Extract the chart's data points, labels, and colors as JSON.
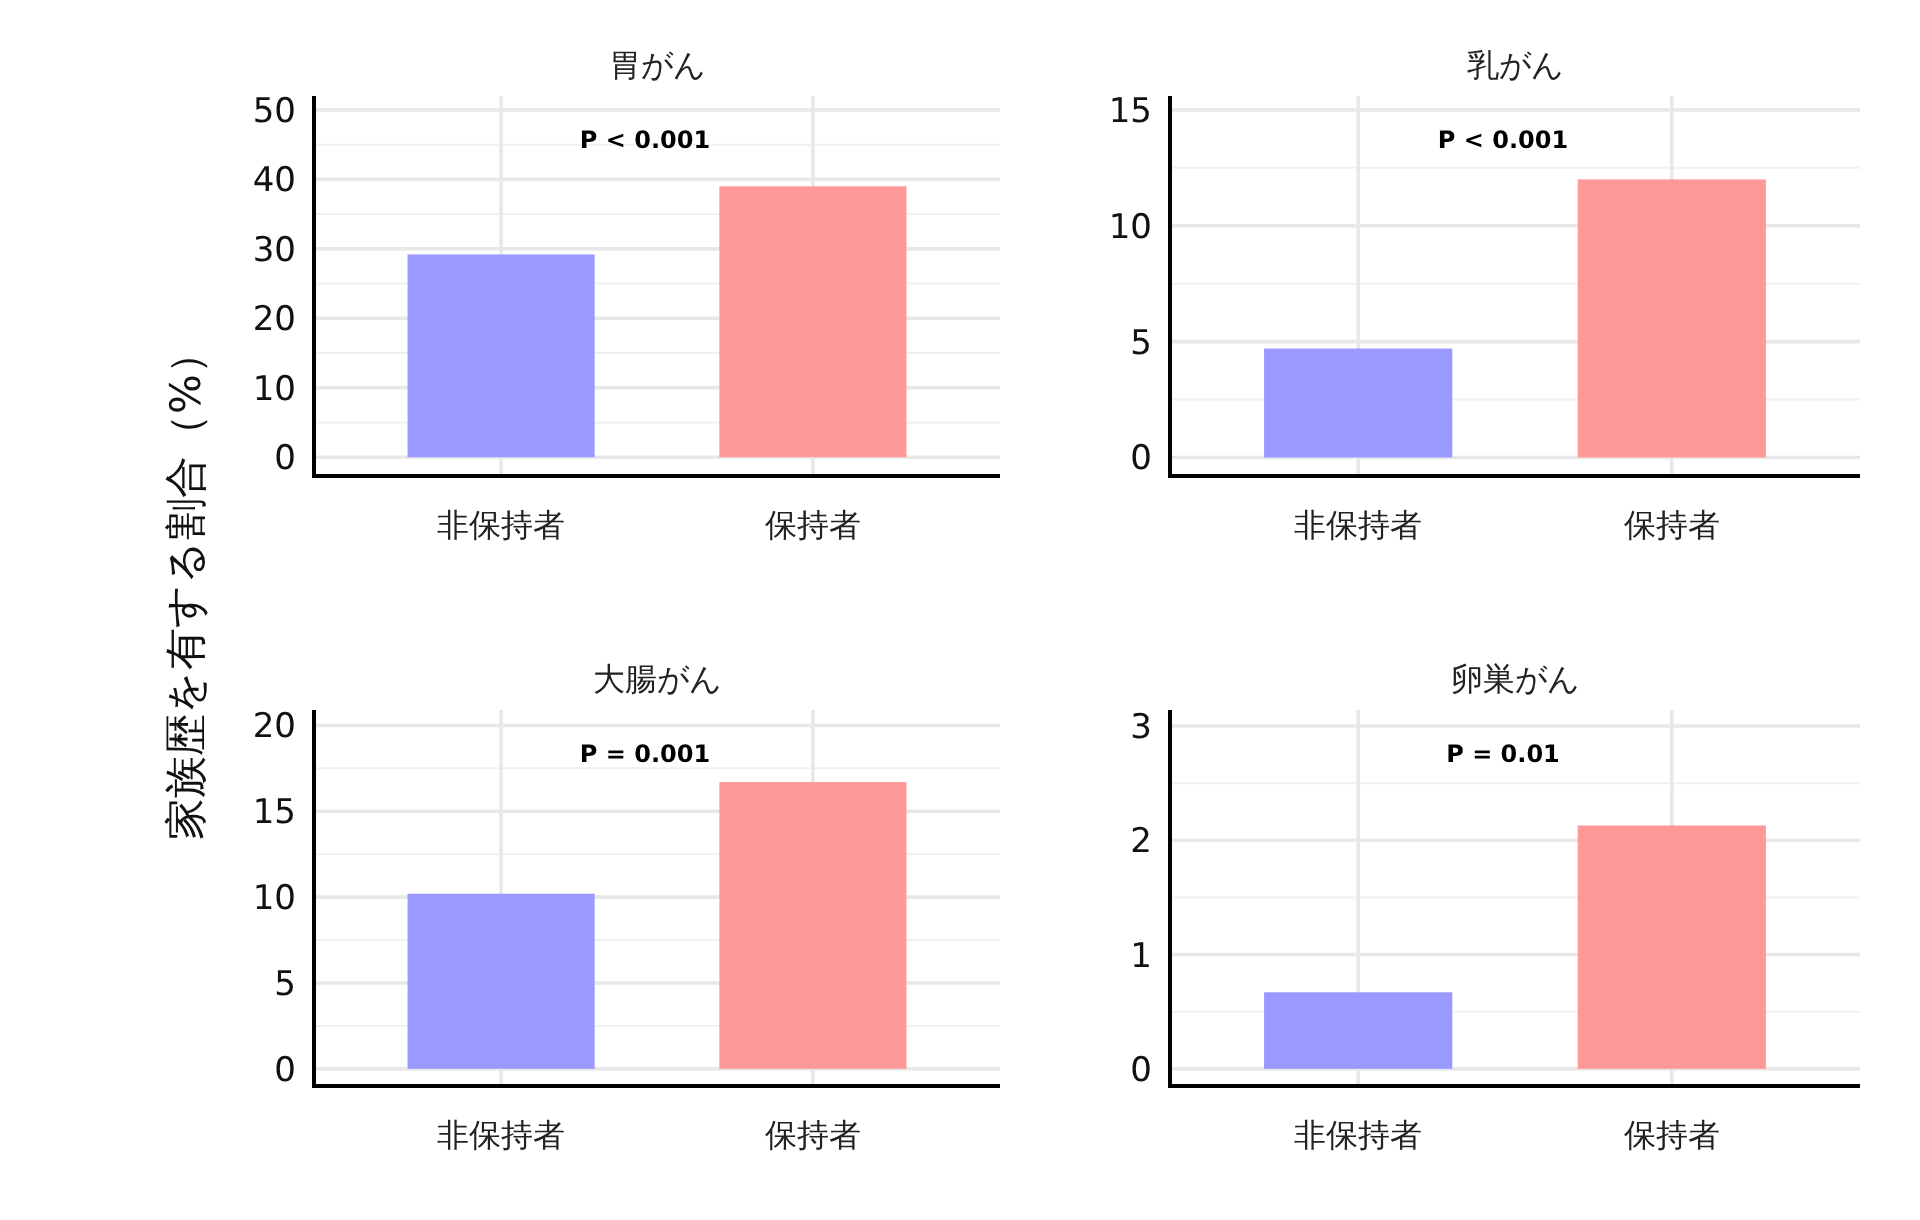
{
  "chart_data": [
    {
      "type": "bar",
      "title": "胃がん",
      "ylabel": "家族歴を有する割合（%）",
      "categories": [
        "非保持者",
        "保持者"
      ],
      "values": [
        29.2,
        39.0
      ],
      "colors": [
        "#9999ff",
        "#ff9999"
      ],
      "ylim": [
        -2.7,
        52
      ],
      "yticks": [
        0,
        10,
        20,
        30,
        40,
        50
      ],
      "grid": true,
      "annotations": [
        "P < 0.001"
      ]
    },
    {
      "type": "bar",
      "title": "乳がん",
      "categories": [
        "非保持者",
        "保持者"
      ],
      "values": [
        4.7,
        12.0
      ],
      "colors": [
        "#9999ff",
        "#ff9999"
      ],
      "ylim": [
        -0.8,
        15.6
      ],
      "yticks": [
        0,
        5,
        10,
        15
      ],
      "grid": true,
      "annotations": [
        "P < 0.001"
      ]
    },
    {
      "type": "bar",
      "title": "大腸がん",
      "categories": [
        "非保持者",
        "保持者"
      ],
      "values": [
        10.2,
        16.7
      ],
      "colors": [
        "#9999ff",
        "#ff9999"
      ],
      "ylim": [
        -1.0,
        20.9
      ],
      "yticks": [
        0,
        5,
        10,
        15,
        20
      ],
      "grid": true,
      "annotations": [
        "P = 0.001"
      ]
    },
    {
      "type": "bar",
      "title": "卵巣がん",
      "categories": [
        "非保持者",
        "保持者"
      ],
      "values": [
        0.67,
        2.13
      ],
      "colors": [
        "#9999ff",
        "#ff9999"
      ],
      "ylim": [
        -0.15,
        3.14
      ],
      "yticks": [
        0,
        1,
        2,
        3
      ],
      "grid": true,
      "annotations": [
        "P = 0.01"
      ]
    }
  ]
}
